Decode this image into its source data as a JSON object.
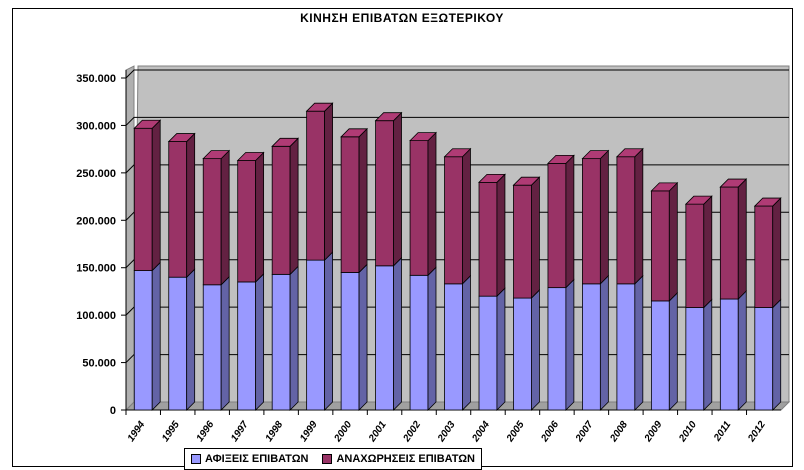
{
  "chart_data": {
    "type": "bar",
    "stacked": true,
    "title": "ΚΙΝΗΣΗ ΕΠΙΒΑΤΩΝ ΕΞΩΤΕΡΙΚΟΥ",
    "xlabel": "",
    "ylabel": "",
    "categories": [
      "1994",
      "1995",
      "1996",
      "1997",
      "1998",
      "1999",
      "2000",
      "2001",
      "2002",
      "2003",
      "2004",
      "2005",
      "2006",
      "2007",
      "2008",
      "2009",
      "2010",
      "2011",
      "2012"
    ],
    "series": [
      {
        "name": "ΑΦΙΞΕΙΣ ΕΠΙΒΑΤΩΝ",
        "color": "#9999ff",
        "values": [
          147000,
          140000,
          132000,
          135000,
          143000,
          158000,
          145000,
          152000,
          142000,
          133000,
          120000,
          118000,
          129000,
          133000,
          133000,
          115000,
          108000,
          117000,
          108000
        ]
      },
      {
        "name": "ΑΝΑΧΩΡΗΣΕΙΣ ΕΠΙΒΑΤΩΝ",
        "color": "#993366",
        "values": [
          150000,
          143000,
          133000,
          128000,
          135000,
          157000,
          143000,
          153000,
          142000,
          134000,
          120000,
          119000,
          131000,
          132000,
          134000,
          116000,
          109000,
          118000,
          107000
        ]
      }
    ],
    "ylim": [
      0,
      350000
    ],
    "yticks": [
      "0",
      "50.000",
      "100.000",
      "150.000",
      "200.000",
      "250.000",
      "300.000",
      "350.000"
    ],
    "grid": true,
    "legend": "bottom",
    "plot_background": "#c0c0c0"
  }
}
